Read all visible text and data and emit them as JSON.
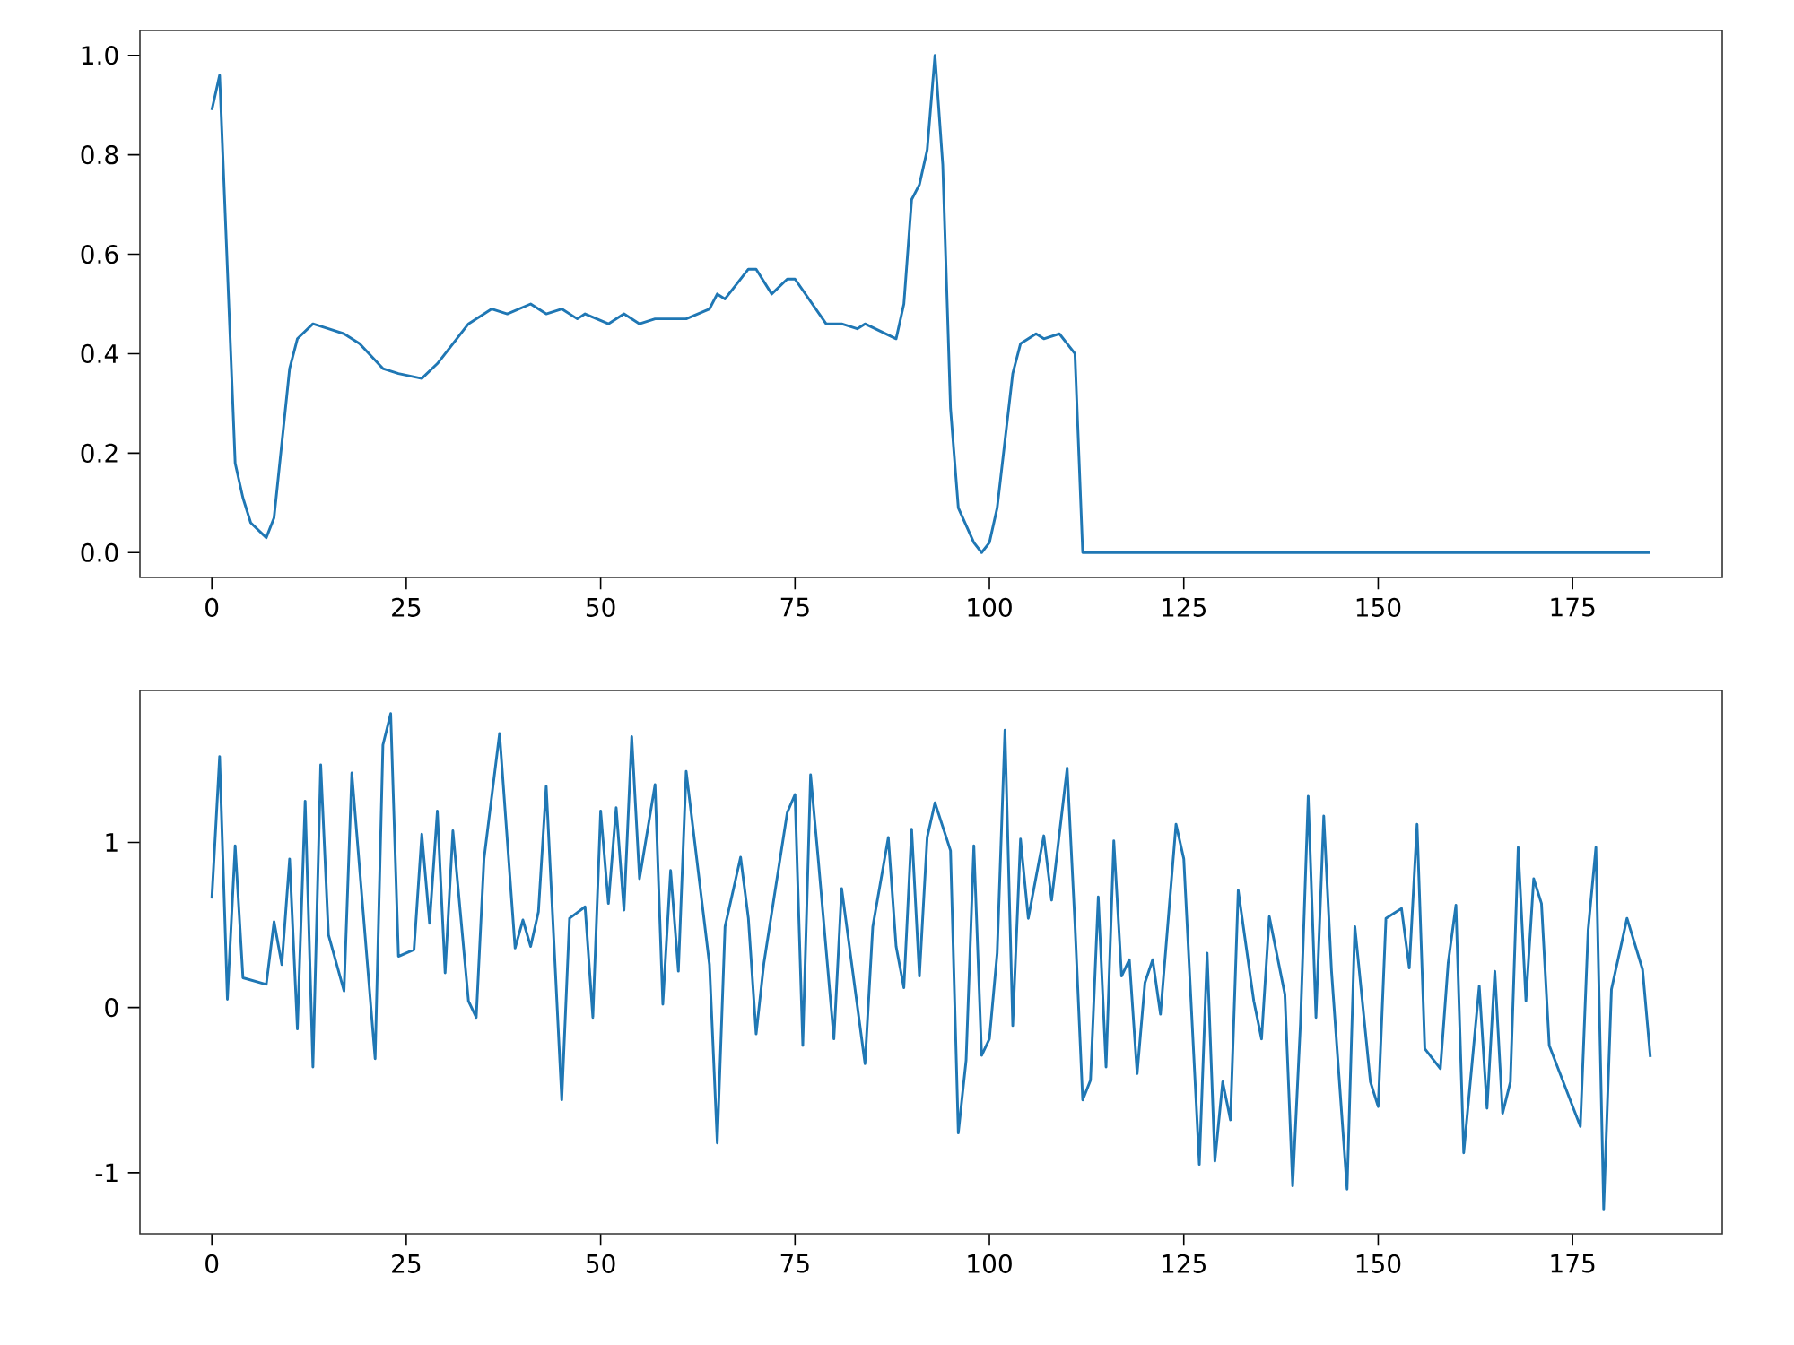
{
  "chart_data": [
    {
      "type": "line",
      "x": [
        0,
        1,
        3,
        4,
        5,
        7,
        8,
        10,
        11,
        13,
        15,
        17,
        19,
        22,
        24,
        27,
        29,
        33,
        36,
        38,
        41,
        43,
        45,
        47,
        48,
        51,
        53,
        55,
        57,
        61,
        64,
        65,
        66,
        69,
        70,
        72,
        74,
        75,
        79,
        81,
        83,
        84,
        88,
        89,
        90,
        91,
        92,
        93,
        94,
        95,
        96,
        98,
        99,
        100,
        101,
        103,
        104,
        106,
        107,
        109,
        111,
        112,
        185
      ],
      "series": [
        {
          "color": "#1f77b4",
          "values": [
            0.89,
            0.96,
            0.18,
            0.11,
            0.06,
            0.03,
            0.07,
            0.37,
            0.43,
            0.46,
            0.45,
            0.44,
            0.42,
            0.37,
            0.36,
            0.35,
            0.38,
            0.46,
            0.49,
            0.48,
            0.5,
            0.48,
            0.49,
            0.47,
            0.48,
            0.46,
            0.48,
            0.46,
            0.47,
            0.47,
            0.49,
            0.52,
            0.51,
            0.57,
            0.57,
            0.52,
            0.55,
            0.55,
            0.46,
            0.46,
            0.45,
            0.46,
            0.43,
            0.5,
            0.71,
            0.74,
            0.81,
            1.0,
            0.78,
            0.29,
            0.09,
            0.02,
            0.0,
            0.02,
            0.09,
            0.36,
            0.42,
            0.44,
            0.43,
            0.44,
            0.4,
            0.0,
            0.0
          ]
        }
      ],
      "xlim": [
        -9.25,
        194.25
      ],
      "ylim": [
        -0.05,
        1.05
      ],
      "xticks": [
        0,
        25,
        50,
        75,
        100,
        125,
        150,
        175
      ],
      "yticks": [
        {
          "value": 0,
          "label": "0.0"
        },
        {
          "value": 0.2,
          "label": "0.2"
        },
        {
          "value": 0.4,
          "label": "0.4"
        },
        {
          "value": 0.6,
          "label": "0.6"
        },
        {
          "value": 0.8,
          "label": "0.8"
        },
        {
          "value": 1,
          "label": "1.0"
        }
      ]
    },
    {
      "type": "line",
      "x": [
        0,
        1,
        2,
        3,
        4,
        7,
        8,
        9,
        10,
        11,
        12,
        13,
        14,
        15,
        17,
        18,
        21,
        22,
        23,
        24,
        26,
        27,
        28,
        29,
        30,
        31,
        33,
        34,
        35,
        37,
        39,
        40,
        41,
        42,
        43,
        45,
        46,
        48,
        49,
        50,
        51,
        52,
        53,
        54,
        55,
        57,
        58,
        59,
        60,
        61,
        64,
        65,
        66,
        68,
        69,
        70,
        71,
        74,
        75,
        76,
        77,
        78,
        80,
        81,
        84,
        85,
        87,
        88,
        89,
        90,
        91,
        92,
        93,
        95,
        96,
        97,
        98,
        99,
        100,
        101,
        102,
        103,
        104,
        105,
        107,
        108,
        109,
        110,
        111,
        112,
        113,
        114,
        115,
        116,
        117,
        118,
        119,
        120,
        121,
        122,
        124,
        125,
        127,
        128,
        129,
        130,
        131,
        132,
        134,
        135,
        136,
        138,
        139,
        140,
        141,
        142,
        143,
        144,
        146,
        147,
        149,
        150,
        151,
        153,
        154,
        155,
        156,
        158,
        159,
        160,
        161,
        163,
        164,
        165,
        166,
        167,
        168,
        169,
        170,
        171,
        172,
        176,
        177,
        178,
        179,
        180,
        182,
        184,
        185
      ],
      "series": [
        {
          "color": "#1f77b4",
          "values": [
            0.66,
            1.52,
            0.05,
            0.98,
            0.18,
            0.14,
            0.52,
            0.26,
            0.9,
            -0.13,
            1.25,
            -0.36,
            1.47,
            0.44,
            0.1,
            1.42,
            -0.31,
            1.59,
            1.78,
            0.31,
            0.35,
            1.05,
            0.51,
            1.19,
            0.21,
            1.07,
            0.04,
            -0.06,
            0.9,
            1.66,
            0.36,
            0.53,
            0.37,
            0.58,
            1.34,
            -0.56,
            0.54,
            0.61,
            -0.06,
            1.19,
            0.63,
            1.21,
            0.59,
            1.64,
            0.78,
            1.35,
            0.02,
            0.83,
            0.22,
            1.43,
            0.26,
            -0.82,
            0.49,
            0.91,
            0.54,
            -0.16,
            0.27,
            1.18,
            1.29,
            -0.23,
            1.41,
            0.89,
            -0.19,
            0.72,
            -0.34,
            0.49,
            1.03,
            0.37,
            0.12,
            1.08,
            0.19,
            1.03,
            1.24,
            0.95,
            -0.76,
            -0.32,
            0.98,
            -0.29,
            -0.19,
            0.33,
            1.68,
            -0.11,
            1.02,
            0.54,
            1.04,
            0.65,
            1.05,
            1.45,
            0.51,
            -0.56,
            -0.44,
            0.67,
            -0.36,
            1.01,
            0.19,
            0.29,
            -0.4,
            0.15,
            0.29,
            -0.04,
            1.11,
            0.9,
            -0.95,
            0.33,
            -0.93,
            -0.45,
            -0.68,
            0.71,
            0.04,
            -0.19,
            0.55,
            0.08,
            -1.08,
            -0.1,
            1.28,
            -0.06,
            1.16,
            0.22,
            -1.1,
            0.49,
            -0.45,
            -0.6,
            0.54,
            0.6,
            0.24,
            1.11,
            -0.25,
            -0.37,
            0.27,
            0.62,
            -0.88,
            0.13,
            -0.61,
            0.22,
            -0.64,
            -0.45,
            0.97,
            0.04,
            0.78,
            0.63,
            -0.23,
            -0.72,
            0.47,
            0.97,
            -1.22,
            0.11,
            0.54,
            0.23,
            -0.3
          ]
        }
      ],
      "xlim": [
        -9.25,
        194.25
      ],
      "ylim": [
        -1.37,
        1.92
      ],
      "xticks": [
        0,
        25,
        50,
        75,
        100,
        125,
        150,
        175
      ],
      "yticks": [
        -1,
        0,
        1
      ]
    }
  ]
}
